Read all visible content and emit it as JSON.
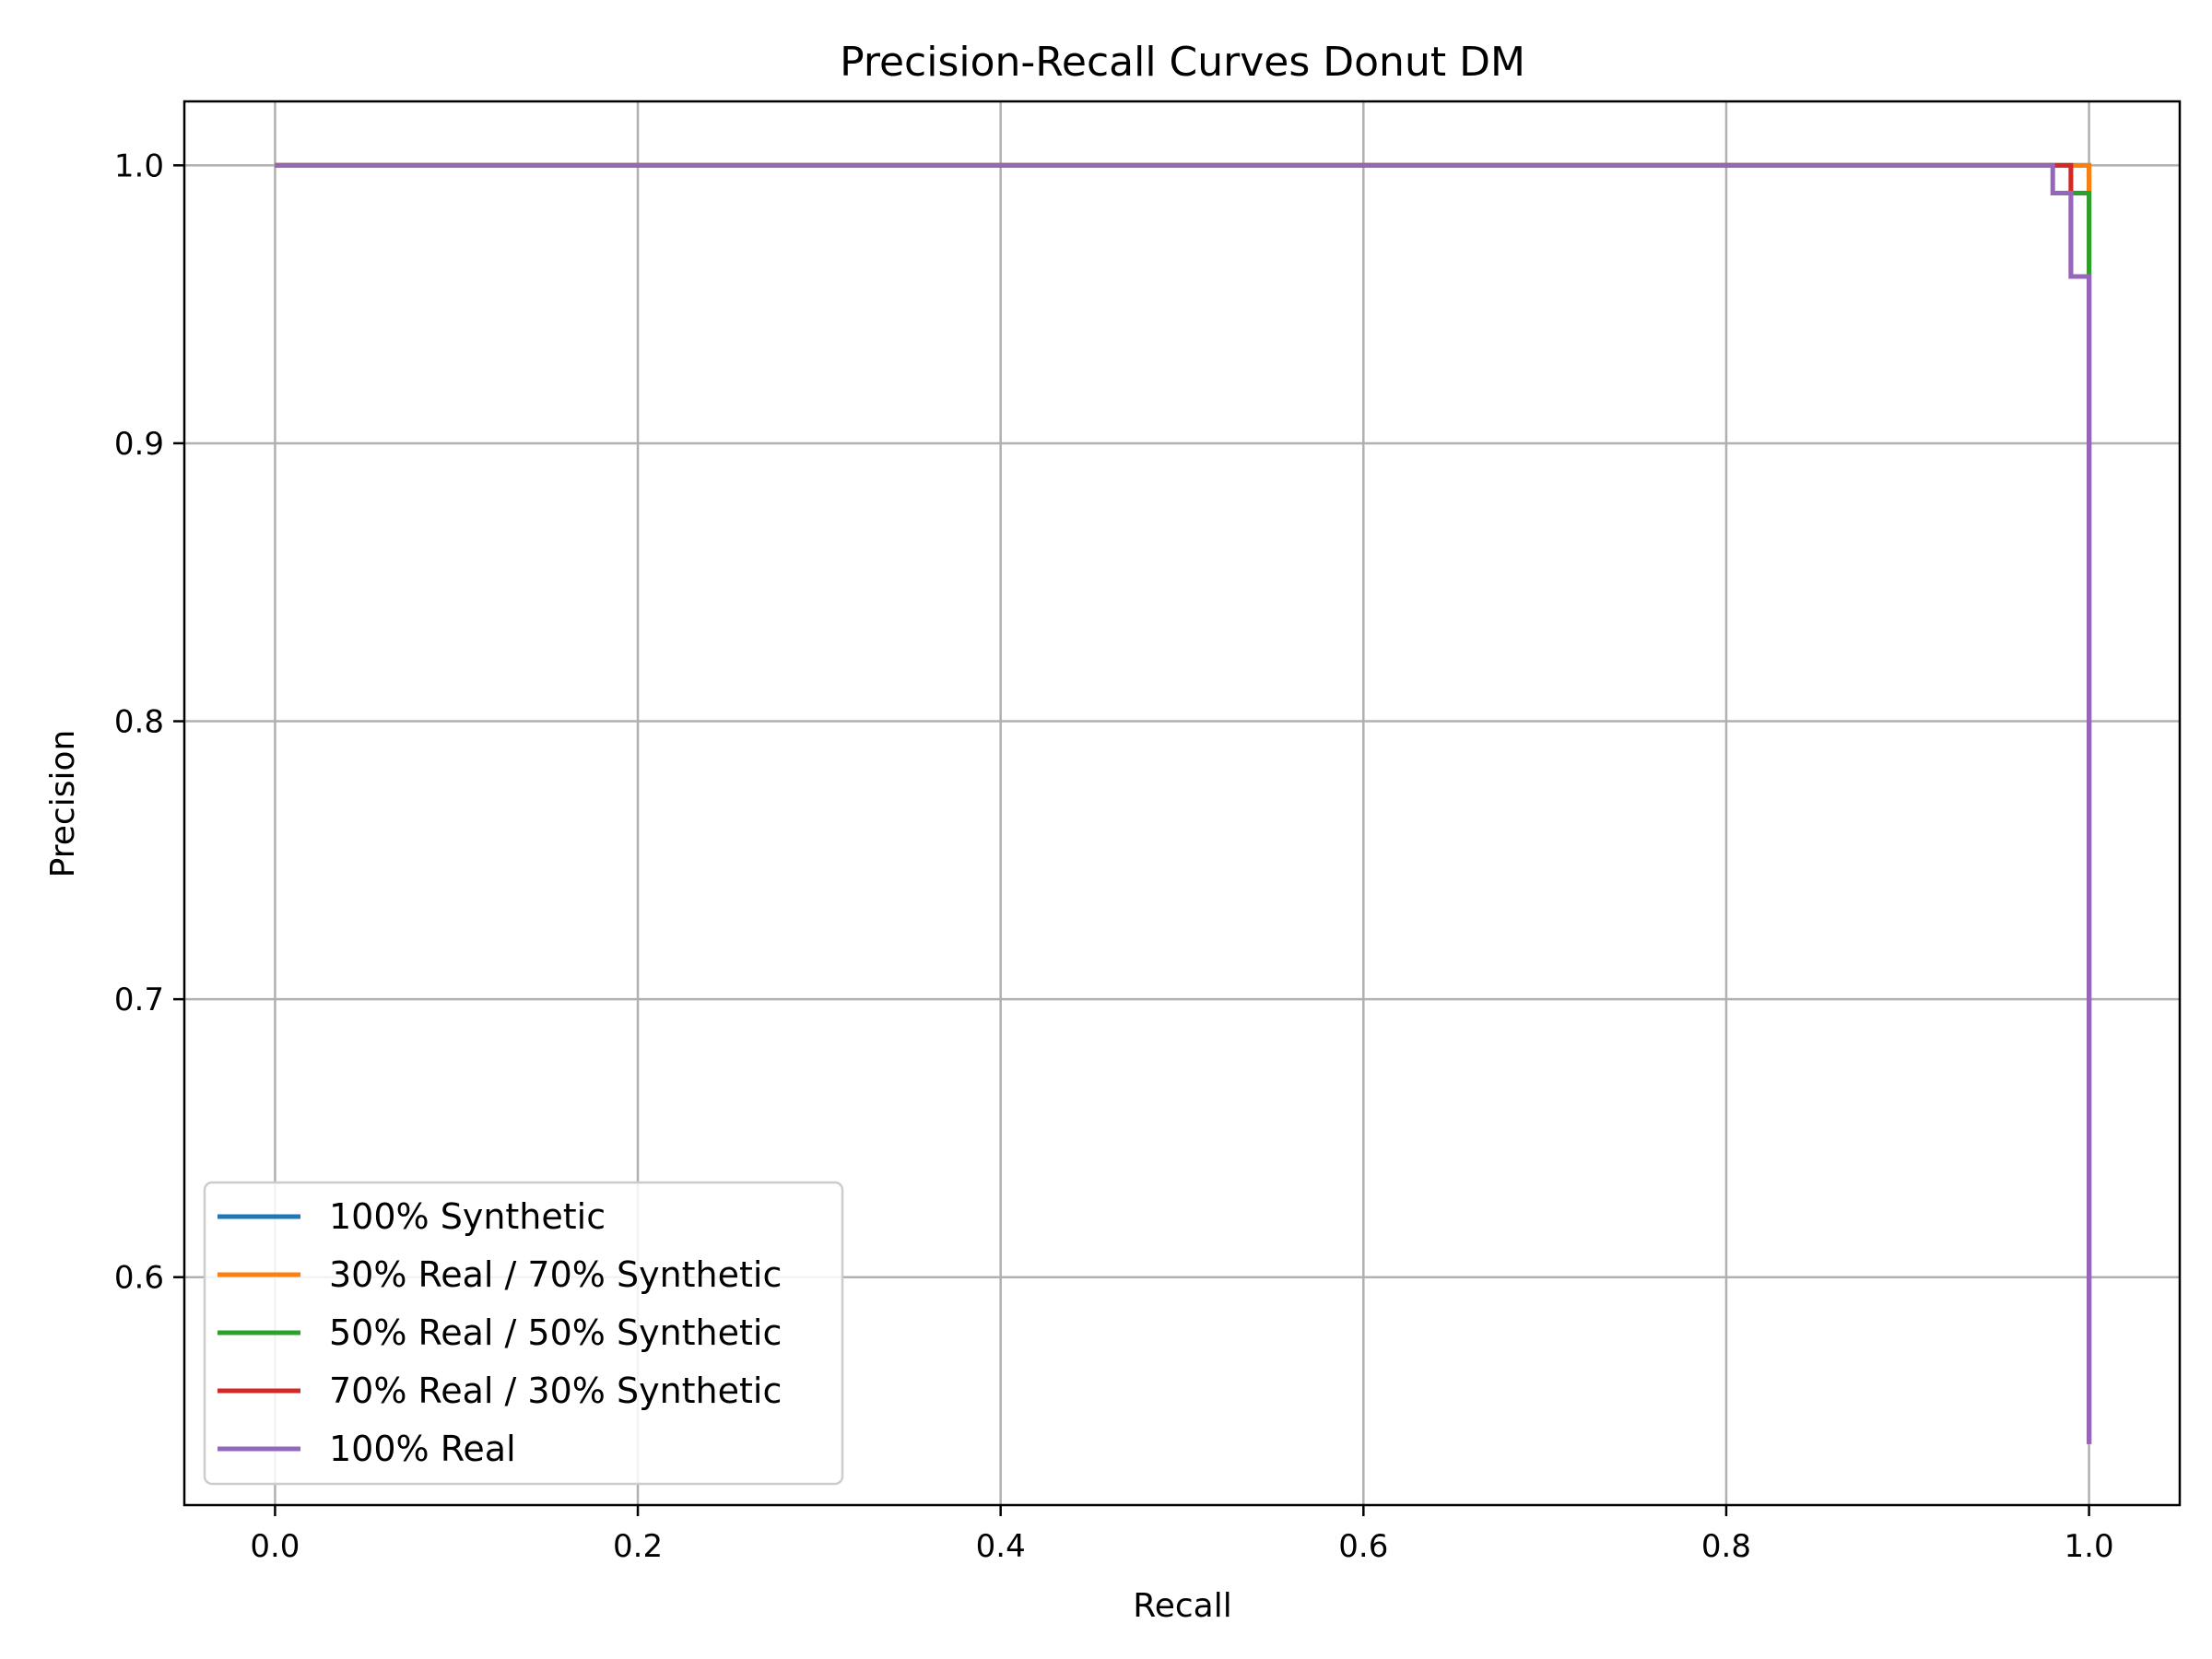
{
  "chart_data": {
    "type": "line",
    "title": "Precision-Recall Curves Donut DM",
    "xlabel": "Recall",
    "ylabel": "Precision",
    "xlim": [
      -0.05,
      1.05
    ],
    "ylim": [
      0.518,
      1.023
    ],
    "xticks": [
      0.0,
      0.2,
      0.4,
      0.6,
      0.8,
      1.0
    ],
    "xtick_labels": [
      "0.0",
      "0.2",
      "0.4",
      "0.6",
      "0.8",
      "1.0"
    ],
    "yticks": [
      0.6,
      0.7,
      0.8,
      0.9,
      1.0
    ],
    "ytick_labels": [
      "0.6",
      "0.7",
      "0.8",
      "0.9",
      "1.0"
    ],
    "grid": true,
    "legend_position": "lower-left",
    "series": [
      {
        "name": "100% Synthetic",
        "color": "#1f77b4",
        "x": [
          0.0,
          0.99,
          0.99,
          1.0,
          1.0,
          1.0
        ],
        "y": [
          1.0,
          1.0,
          1.0,
          1.0,
          0.54,
          0.54
        ]
      },
      {
        "name": "30% Real / 70% Synthetic",
        "color": "#ff7f0e",
        "x": [
          0.0,
          1.0,
          1.0
        ],
        "y": [
          1.0,
          1.0,
          0.54
        ]
      },
      {
        "name": "50% Real / 50% Synthetic",
        "color": "#2ca02c",
        "x": [
          0.0,
          0.99,
          0.99,
          1.0,
          1.0
        ],
        "y": [
          1.0,
          1.0,
          0.99,
          0.99,
          0.54
        ]
      },
      {
        "name": "70% Real / 30% Synthetic",
        "color": "#d62728",
        "x": [
          0.0,
          0.99,
          0.99,
          1.0,
          1.0
        ],
        "y": [
          1.0,
          1.0,
          0.96,
          0.96,
          0.54
        ]
      },
      {
        "name": "100% Real",
        "color": "#9467bd",
        "x": [
          0.0,
          0.98,
          0.98,
          0.99,
          0.99,
          1.0,
          1.0
        ],
        "y": [
          1.0,
          1.0,
          0.99,
          0.99,
          0.96,
          0.96,
          0.54
        ]
      }
    ]
  }
}
